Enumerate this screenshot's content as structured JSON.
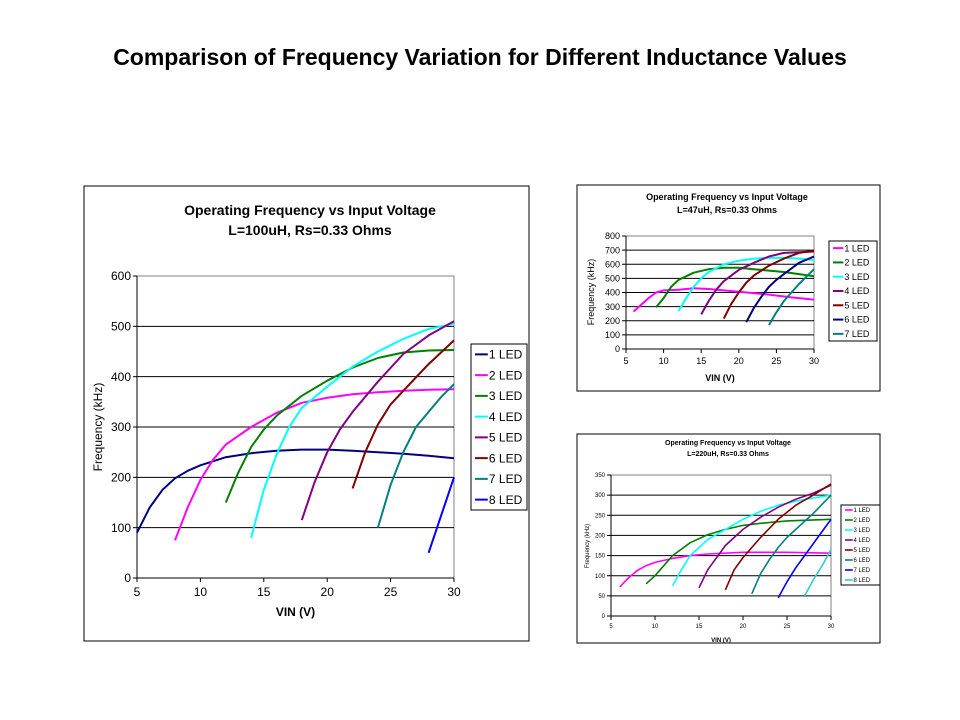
{
  "slide": {
    "title": "Comparison of Frequency Variation for Different Inductance Values"
  },
  "chart_data": [
    {
      "type": "line",
      "title": "Operating Frequency vs Input Voltage",
      "subtitle": "L=100uH, Rs=0.33 Ohms",
      "xlabel": "VIN (V)",
      "ylabel": "Frequency (kHz)",
      "xlim": [
        5,
        30
      ],
      "ylim": [
        0,
        600
      ],
      "xticks": [
        5,
        10,
        15,
        20,
        25,
        30
      ],
      "yticks": [
        0,
        100,
        200,
        300,
        400,
        500,
        600
      ],
      "grid": "horizontal",
      "legend": "right",
      "series": [
        {
          "name": "1 LED",
          "color": "#000080",
          "points": [
            [
              5,
              90
            ],
            [
              6,
              140
            ],
            [
              7,
              175
            ],
            [
              8,
              198
            ],
            [
              9,
              213
            ],
            [
              10,
              224
            ],
            [
              12,
              240
            ],
            [
              14,
              248
            ],
            [
              16,
              253
            ],
            [
              18,
              255
            ],
            [
              20,
              255
            ],
            [
              22,
              253
            ],
            [
              24,
              250
            ],
            [
              26,
              247
            ],
            [
              28,
              243
            ],
            [
              30,
              238
            ]
          ]
        },
        {
          "name": "2 LED",
          "color": "#FF00FF",
          "points": [
            [
              8,
              75
            ],
            [
              9,
              140
            ],
            [
              10,
              195
            ],
            [
              11,
              235
            ],
            [
              12,
              265
            ],
            [
              14,
              300
            ],
            [
              16,
              328
            ],
            [
              18,
              348
            ],
            [
              20,
              358
            ],
            [
              22,
              365
            ],
            [
              24,
              369
            ],
            [
              26,
              372
            ],
            [
              28,
              374
            ],
            [
              30,
              375
            ]
          ]
        },
        {
          "name": "3 LED",
          "color": "#008000",
          "points": [
            [
              12,
              150
            ],
            [
              13,
              210
            ],
            [
              14,
              260
            ],
            [
              15,
              295
            ],
            [
              16,
              322
            ],
            [
              18,
              362
            ],
            [
              20,
              392
            ],
            [
              22,
              418
            ],
            [
              24,
              437
            ],
            [
              26,
              448
            ],
            [
              28,
              452
            ],
            [
              30,
              453
            ]
          ]
        },
        {
          "name": "4 LED",
          "color": "#00FFFF",
          "points": [
            [
              14,
              80
            ],
            [
              15,
              175
            ],
            [
              16,
              245
            ],
            [
              17,
              300
            ],
            [
              18,
              338
            ],
            [
              20,
              380
            ],
            [
              22,
              420
            ],
            [
              24,
              450
            ],
            [
              26,
              475
            ],
            [
              28,
              495
            ],
            [
              30,
              505
            ]
          ]
        },
        {
          "name": "5 LED",
          "color": "#800080",
          "points": [
            [
              18,
              115
            ],
            [
              19,
              190
            ],
            [
              20,
              250
            ],
            [
              21,
              295
            ],
            [
              22,
              330
            ],
            [
              24,
              390
            ],
            [
              26,
              445
            ],
            [
              28,
              482
            ],
            [
              30,
              510
            ]
          ]
        },
        {
          "name": "6 LED",
          "color": "#800000",
          "points": [
            [
              22,
              178
            ],
            [
              23,
              250
            ],
            [
              24,
              305
            ],
            [
              25,
              345
            ],
            [
              26,
              372
            ],
            [
              28,
              425
            ],
            [
              30,
              472
            ]
          ]
        },
        {
          "name": "7 LED",
          "color": "#008080",
          "points": [
            [
              24,
              100
            ],
            [
              25,
              185
            ],
            [
              26,
              250
            ],
            [
              27,
              300
            ],
            [
              28,
              330
            ],
            [
              29,
              360
            ],
            [
              30,
              385
            ]
          ]
        },
        {
          "name": "8 LED",
          "color": "#0000FF",
          "points": [
            [
              28,
              50
            ],
            [
              29,
              125
            ],
            [
              30,
              200
            ]
          ]
        }
      ]
    },
    {
      "type": "line",
      "title": "Operating Frequency vs Input Voltage",
      "subtitle": "L=47uH, Rs=0.33 Ohms",
      "xlabel": "VIN (V)",
      "ylabel": "Frequency (kHz)",
      "xlim": [
        5,
        30
      ],
      "ylim": [
        0,
        800
      ],
      "xticks": [
        5,
        10,
        15,
        20,
        25,
        30
      ],
      "yticks": [
        0,
        100,
        200,
        300,
        400,
        500,
        600,
        700,
        800
      ],
      "grid": "horizontal",
      "legend": "right",
      "series": [
        {
          "name": "1 LED",
          "color": "#FF00FF",
          "points": [
            [
              6,
              265
            ],
            [
              8,
              360
            ],
            [
              9,
              400
            ],
            [
              10,
              415
            ],
            [
              12,
              420
            ],
            [
              14,
              430
            ],
            [
              16,
              425
            ],
            [
              20,
              405
            ],
            [
              24,
              385
            ],
            [
              27,
              365
            ],
            [
              30,
              350
            ]
          ]
        },
        {
          "name": "2 LED",
          "color": "#008000",
          "points": [
            [
              9,
              295
            ],
            [
              10,
              360
            ],
            [
              11,
              440
            ],
            [
              12,
              490
            ],
            [
              14,
              540
            ],
            [
              16,
              565
            ],
            [
              18,
              575
            ],
            [
              20,
              575
            ],
            [
              22,
              565
            ],
            [
              24,
              555
            ],
            [
              26,
              545
            ],
            [
              28,
              530
            ],
            [
              30,
              515
            ]
          ]
        },
        {
          "name": "3 LED",
          "color": "#00FFFF",
          "points": [
            [
              12,
              270
            ],
            [
              13,
              360
            ],
            [
              14,
              440
            ],
            [
              15,
              500
            ],
            [
              16,
              545
            ],
            [
              18,
              600
            ],
            [
              20,
              625
            ],
            [
              22,
              640
            ],
            [
              24,
              645
            ],
            [
              26,
              645
            ],
            [
              28,
              640
            ],
            [
              30,
              630
            ]
          ]
        },
        {
          "name": "4 LED",
          "color": "#800080",
          "points": [
            [
              15,
              245
            ],
            [
              16,
              340
            ],
            [
              17,
              420
            ],
            [
              18,
              480
            ],
            [
              20,
              560
            ],
            [
              22,
              610
            ],
            [
              24,
              655
            ],
            [
              26,
              680
            ],
            [
              28,
              685
            ],
            [
              30,
              690
            ]
          ]
        },
        {
          "name": "5 LED",
          "color": "#800000",
          "points": [
            [
              18,
              215
            ],
            [
              19,
              320
            ],
            [
              20,
              400
            ],
            [
              21,
              470
            ],
            [
              22,
              520
            ],
            [
              24,
              590
            ],
            [
              26,
              640
            ],
            [
              28,
              680
            ],
            [
              30,
              695
            ]
          ]
        },
        {
          "name": "6 LED",
          "color": "#000080",
          "points": [
            [
              21,
              190
            ],
            [
              22,
              290
            ],
            [
              23,
              370
            ],
            [
              24,
              440
            ],
            [
              25,
              490
            ],
            [
              26,
              530
            ],
            [
              28,
              610
            ],
            [
              30,
              655
            ]
          ]
        },
        {
          "name": "7 LED",
          "color": "#008080",
          "points": [
            [
              24,
              170
            ],
            [
              25,
              260
            ],
            [
              26,
              340
            ],
            [
              27,
              400
            ],
            [
              28,
              460
            ],
            [
              30,
              565
            ]
          ]
        }
      ]
    },
    {
      "type": "line",
      "title": "Operating Frequency vs Input Voltage",
      "subtitle": "L=220uH, Rs=0.33 Ohms",
      "xlabel": "VIN (V)",
      "ylabel": "Frequency (kHz)",
      "xlim": [
        5,
        30
      ],
      "ylim": [
        0,
        350
      ],
      "xticks": [
        5,
        10,
        15,
        20,
        25,
        30
      ],
      "yticks": [
        0,
        50,
        100,
        150,
        200,
        250,
        300,
        350
      ],
      "grid": "horizontal",
      "legend": "right",
      "series": [
        {
          "name": "1 LED",
          "color": "#FF00FF",
          "points": [
            [
              6,
              72
            ],
            [
              7,
              95
            ],
            [
              8,
              113
            ],
            [
              9,
              125
            ],
            [
              10,
              133
            ],
            [
              12,
              143
            ],
            [
              14,
              150
            ],
            [
              16,
              154
            ],
            [
              20,
              158
            ],
            [
              25,
              158
            ],
            [
              30,
              156
            ]
          ]
        },
        {
          "name": "2 LED",
          "color": "#008000",
          "points": [
            [
              9,
              80
            ],
            [
              10,
              100
            ],
            [
              12,
              150
            ],
            [
              14,
              182
            ],
            [
              16,
              202
            ],
            [
              18,
              215
            ],
            [
              20,
              225
            ],
            [
              22,
              230
            ],
            [
              25,
              236
            ],
            [
              30,
              240
            ]
          ]
        },
        {
          "name": "3 LED",
          "color": "#00FFFF",
          "points": [
            [
              12,
              75
            ],
            [
              13,
              115
            ],
            [
              14,
              150
            ],
            [
              15,
              170
            ],
            [
              16,
              190
            ],
            [
              18,
              215
            ],
            [
              20,
              240
            ],
            [
              22,
              260
            ],
            [
              24,
              275
            ],
            [
              26,
              285
            ],
            [
              28,
              293
            ],
            [
              30,
              300
            ]
          ]
        },
        {
          "name": "4 LED",
          "color": "#800080",
          "points": [
            [
              15,
              70
            ],
            [
              16,
              115
            ],
            [
              17,
              145
            ],
            [
              18,
              175
            ],
            [
              20,
              215
            ],
            [
              22,
              245
            ],
            [
              24,
              270
            ],
            [
              26,
              290
            ],
            [
              28,
              305
            ],
            [
              30,
              325
            ]
          ]
        },
        {
          "name": "5 LED",
          "color": "#800000",
          "points": [
            [
              18,
              65
            ],
            [
              19,
              115
            ],
            [
              20,
              145
            ],
            [
              21,
              170
            ],
            [
              22,
              195
            ],
            [
              24,
              240
            ],
            [
              26,
              275
            ],
            [
              28,
              300
            ],
            [
              30,
              328
            ]
          ]
        },
        {
          "name": "6 LED",
          "color": "#008080",
          "points": [
            [
              21,
              55
            ],
            [
              22,
              105
            ],
            [
              23,
              140
            ],
            [
              24,
              170
            ],
            [
              25,
              195
            ],
            [
              26,
              215
            ],
            [
              28,
              255
            ],
            [
              30,
              300
            ]
          ]
        },
        {
          "name": "7 LED",
          "color": "#0000FF",
          "points": [
            [
              24,
              45
            ],
            [
              25,
              85
            ],
            [
              26,
              120
            ],
            [
              27,
              150
            ],
            [
              28,
              180
            ],
            [
              29,
              210
            ],
            [
              30,
              240
            ]
          ]
        },
        {
          "name": "8 LED",
          "color": "#33CCCC",
          "points": [
            [
              27,
              50
            ],
            [
              28,
              90
            ],
            [
              29,
              125
            ],
            [
              30,
              165
            ]
          ]
        }
      ]
    }
  ]
}
